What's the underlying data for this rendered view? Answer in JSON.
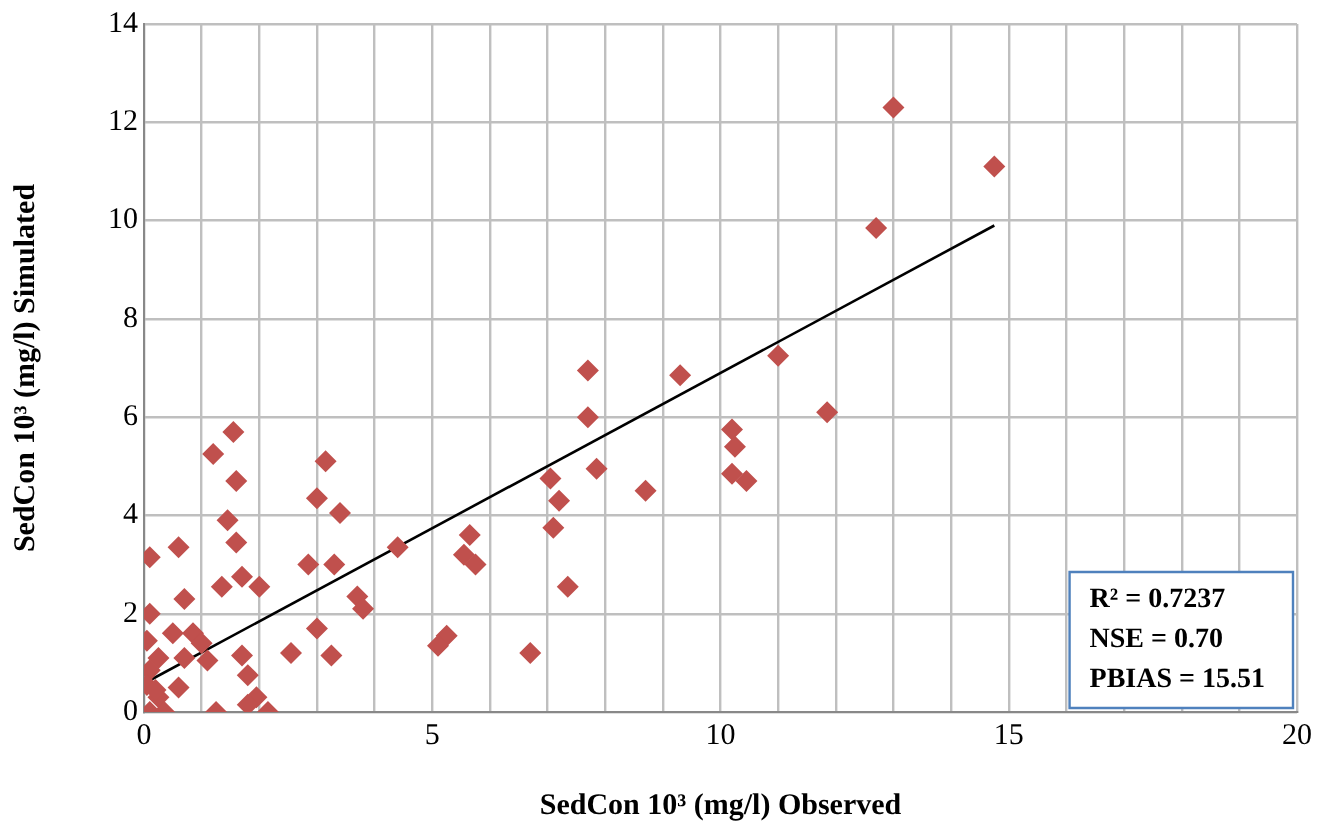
{
  "chart_data": {
    "type": "scatter",
    "xlabel": "SedCon 10³ (mg/l) Observed",
    "ylabel": "SedCon 10³ (mg/l) Simulated",
    "xlim": [
      0,
      20
    ],
    "ylim": [
      0,
      14
    ],
    "xticks": [
      0,
      {
        "value": 1,
        "label": null
      },
      {
        "value": 2,
        "label": null
      },
      {
        "value": 3,
        "label": null
      },
      {
        "value": 4,
        "label": null
      },
      5,
      {
        "value": 6,
        "label": null
      },
      {
        "value": 7,
        "label": null
      },
      {
        "value": 8,
        "label": null
      },
      {
        "value": 9,
        "label": null
      },
      10,
      {
        "value": 11,
        "label": null
      },
      {
        "value": 12,
        "label": null
      },
      {
        "value": 13,
        "label": null
      },
      {
        "value": 14,
        "label": null
      },
      15,
      {
        "value": 16,
        "label": null
      },
      {
        "value": 17,
        "label": null
      },
      {
        "value": 18,
        "label": null
      },
      {
        "value": 19,
        "label": null
      },
      20
    ],
    "yticks": [
      0,
      2,
      4,
      6,
      8,
      10,
      12,
      14
    ],
    "grid": true,
    "legend": false,
    "annotations": [
      "R² = 0.7237",
      "NSE = 0.70",
      "PBIAS = 15.51"
    ],
    "series": [
      {
        "type": "scatter",
        "color": "#c0504d",
        "marker": "diamond",
        "x": [
          13.0,
          14.75,
          12.7,
          11.0,
          11.85,
          7.7,
          9.3,
          7.7,
          10.2,
          10.25,
          7.05,
          7.85,
          10.2,
          10.45,
          7.2,
          8.7,
          7.1,
          5.65,
          5.55,
          5.75,
          7.35,
          5.25,
          5.1,
          6.7,
          4.4,
          1.55,
          1.2,
          3.15,
          1.6,
          3.0,
          3.4,
          1.45,
          0.1,
          0.6,
          1.6,
          2.85,
          3.3,
          1.35,
          1.7,
          2.0,
          0.7,
          3.7,
          3.8,
          0.1,
          3.0,
          3.25,
          2.55,
          0.5,
          0.85,
          1.0,
          0.05,
          1.7,
          0.7,
          1.1,
          1.8,
          0.25,
          0.1,
          0.6,
          1.95,
          1.25,
          2.15,
          1.8,
          0.25,
          0.1,
          0.35,
          0.05,
          0.2
        ],
        "values": [
          12.3,
          11.1,
          9.85,
          7.25,
          6.1,
          6.95,
          6.85,
          6.0,
          5.75,
          5.4,
          4.75,
          4.95,
          4.85,
          4.7,
          4.3,
          4.5,
          3.75,
          3.6,
          3.2,
          3.0,
          2.55,
          1.55,
          1.35,
          1.2,
          3.35,
          5.7,
          5.25,
          5.1,
          4.7,
          4.35,
          4.05,
          3.9,
          3.15,
          3.35,
          3.45,
          3.0,
          3.0,
          2.55,
          2.75,
          2.55,
          2.3,
          2.35,
          2.1,
          2.0,
          1.7,
          1.15,
          1.2,
          1.6,
          1.6,
          1.4,
          1.45,
          1.15,
          1.1,
          1.05,
          0.75,
          1.1,
          0.85,
          0.5,
          0.3,
          0,
          0,
          0.15,
          0.3,
          0,
          0,
          0.55,
          0.45
        ]
      },
      {
        "type": "line",
        "color": "#000000",
        "marker": "none",
        "x": [
          0.03,
          14.75
        ],
        "values": [
          0.6,
          9.9
        ]
      }
    ]
  }
}
